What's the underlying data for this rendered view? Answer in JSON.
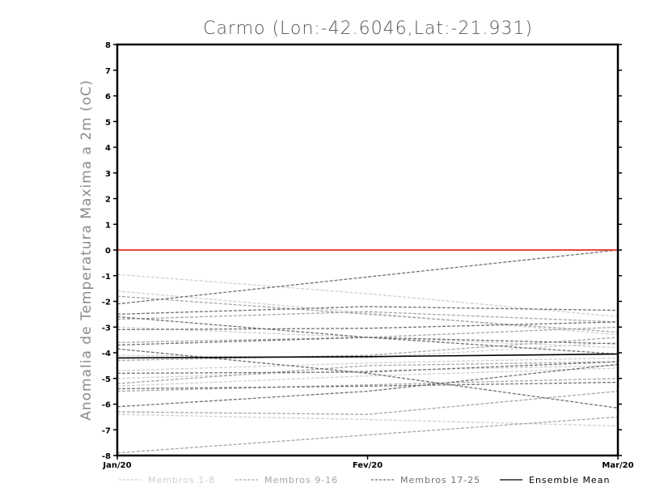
{
  "chart_data": {
    "type": "line",
    "title": "Carmo (Lon:-42.6046,Lat:-21.931)",
    "ylabel": "Anomalia de Temperatura Maxima a 2m (oC)",
    "xlabel": "",
    "categories": [
      "Jan/20",
      "Fev/20",
      "Mar/20"
    ],
    "ylim": [
      -8,
      8
    ],
    "yticks": [
      -8,
      -7,
      -6,
      -5,
      -4,
      -3,
      -2,
      -1,
      0,
      1,
      2,
      3,
      4,
      5,
      6,
      7,
      8
    ],
    "zero_line_color": "#e8473a",
    "groups": [
      {
        "name": "Membros 1-8",
        "color": "#d0d0d0",
        "dashed": true,
        "members": [
          [
            -0.95,
            -1.7,
            -2.6
          ],
          [
            -1.6,
            -2.45,
            -3.3
          ],
          [
            -3.0,
            -3.4,
            -3.8
          ],
          [
            -4.1,
            -4.2,
            -3.6
          ],
          [
            -4.7,
            -4.4,
            -4.2
          ],
          [
            -5.0,
            -4.7,
            -4.5
          ],
          [
            -5.3,
            -4.9,
            -4.6
          ],
          [
            -6.4,
            -6.6,
            -6.85
          ]
        ]
      },
      {
        "name": "Membros 9-16",
        "color": "#a6a6a6",
        "dashed": true,
        "members": [
          [
            -1.8,
            -2.5,
            -3.2
          ],
          [
            -2.7,
            -2.4,
            -2.8
          ],
          [
            -3.6,
            -3.4,
            -3.0
          ],
          [
            -4.3,
            -4.1,
            -3.4
          ],
          [
            -5.2,
            -4.5,
            -4.35
          ],
          [
            -5.5,
            -5.25,
            -5.0
          ],
          [
            -6.3,
            -6.4,
            -5.5
          ],
          [
            -7.9,
            -7.2,
            -6.5
          ]
        ]
      },
      {
        "name": "Membros 17-25",
        "color": "#707070",
        "dashed": true,
        "members": [
          [
            -2.1,
            -1.05,
            0.0
          ],
          [
            -2.5,
            -2.2,
            -2.35
          ],
          [
            -2.6,
            -3.4,
            -4.05
          ],
          [
            -3.1,
            -3.05,
            -2.8
          ],
          [
            -3.7,
            -3.4,
            -3.65
          ],
          [
            -3.85,
            -4.8,
            -6.15
          ],
          [
            -4.8,
            -4.75,
            -4.35
          ],
          [
            -5.4,
            -5.3,
            -5.15
          ],
          [
            -6.1,
            -5.5,
            -4.45
          ]
        ]
      }
    ],
    "ensemble_mean": {
      "name": "Ensemble Mean",
      "color": "#000000",
      "values": [
        -4.2,
        -4.15,
        -4.05
      ]
    },
    "legend_position": "bottom"
  }
}
